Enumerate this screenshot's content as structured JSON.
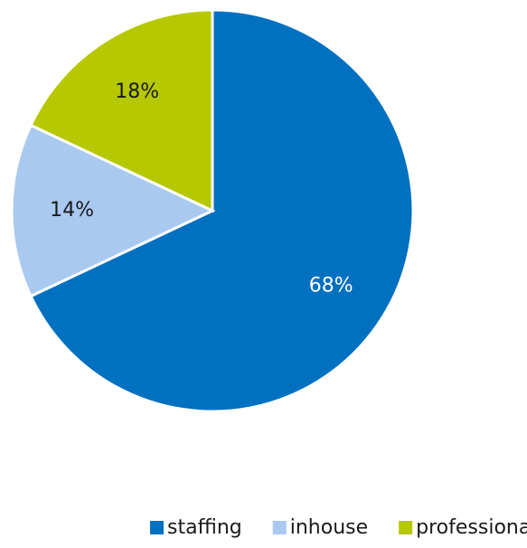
{
  "chart_data": {
    "type": "pie",
    "categories": [
      "staffing",
      "inhouse",
      "professionals"
    ],
    "values": [
      68,
      14,
      18
    ],
    "value_labels": [
      "68%",
      "14%",
      "18%"
    ],
    "colors": [
      "#0070c0",
      "#a9c9f0",
      "#b5c800"
    ],
    "legend": "bottom"
  }
}
